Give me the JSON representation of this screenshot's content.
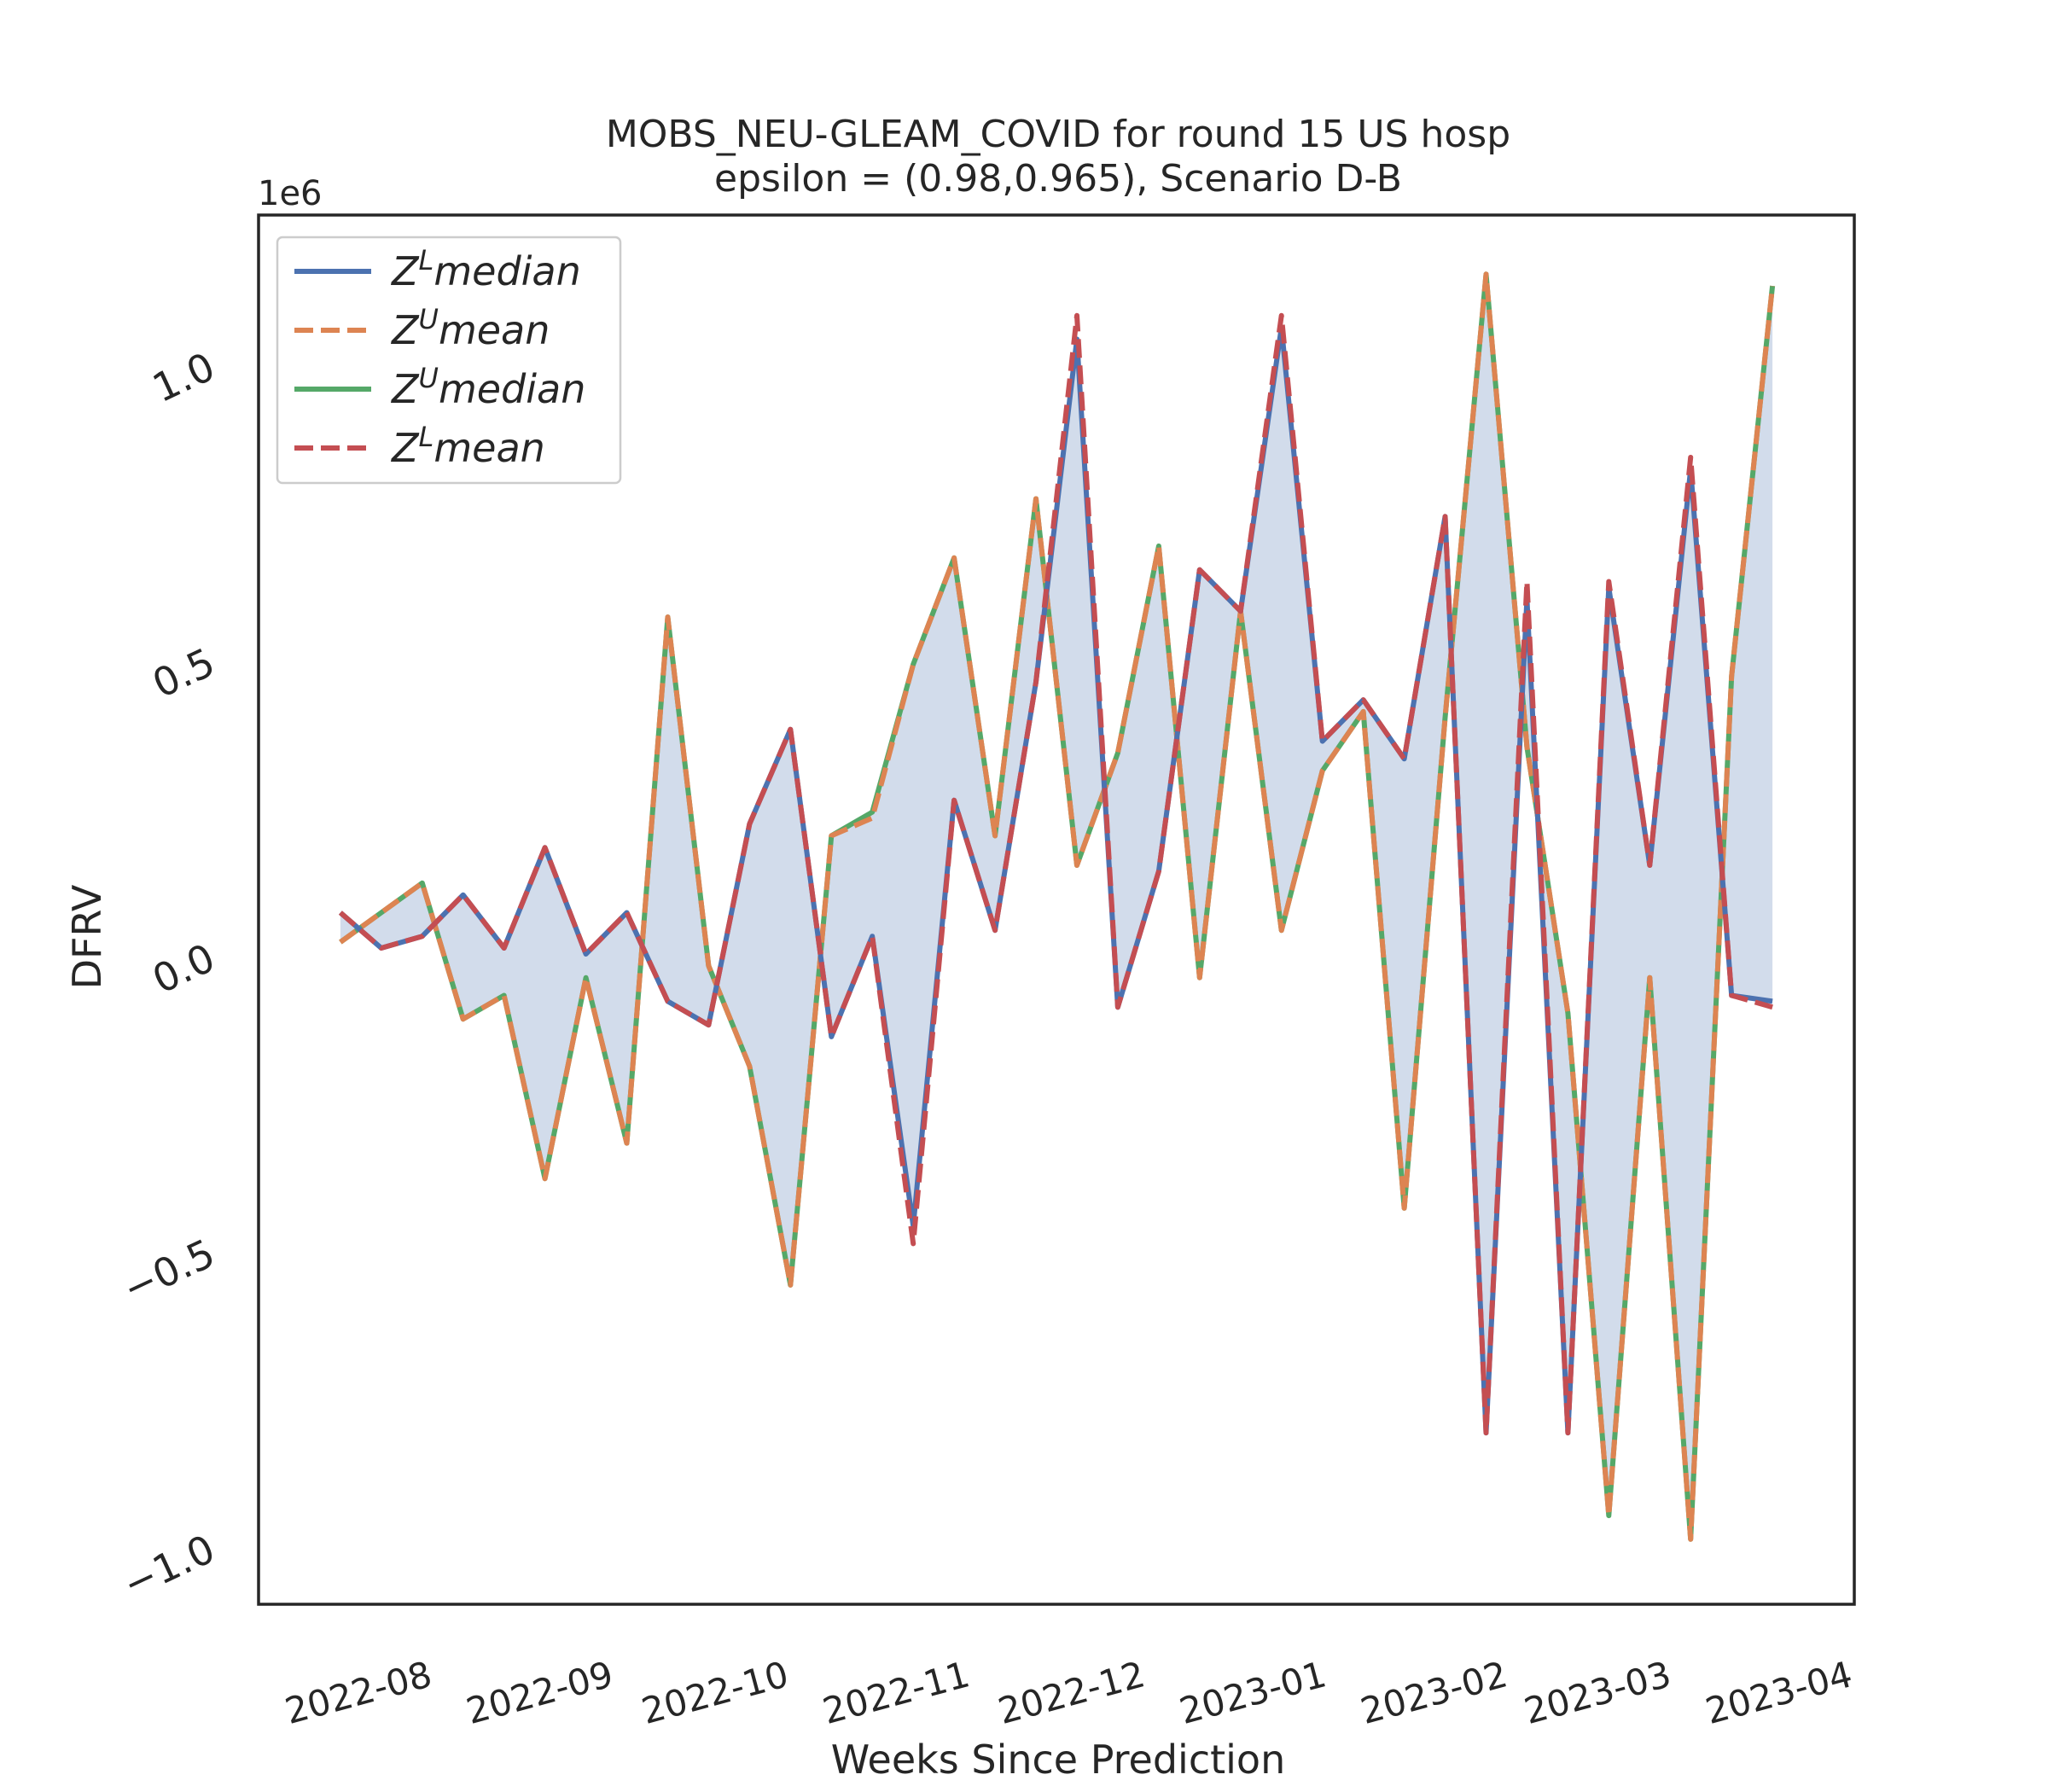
{
  "chart_data": {
    "type": "line",
    "title": "MOBS_NEU-GLEAM_COVID for round 15 US  hosp",
    "subtitle": "epsilon = (0.98,0.965), Scenario D-B",
    "xlabel": "Weeks Since Prediction",
    "ylabel": "DFRV",
    "y_offset_label": "1e6",
    "xlim": [
      "2022-07-09",
      "2023-04-08"
    ],
    "ylim": [
      -1.1,
      1.25
    ],
    "y_ticks": [
      -1.0,
      -0.5,
      0.0,
      0.5,
      1.0
    ],
    "y_tick_labels": [
      "−1.0",
      "−0.5",
      "0.0",
      "0.5",
      "1.0"
    ],
    "x_ticks": [
      "2022-08-01",
      "2022-09-01",
      "2022-10-01",
      "2022-11-01",
      "2022-12-01",
      "2023-01-01",
      "2023-02-01",
      "2023-03-01",
      "2023-04-01"
    ],
    "x_tick_labels": [
      "2022-08",
      "2022-09",
      "2022-10",
      "2022-11",
      "2022-12",
      "2023-01",
      "2023-02",
      "2023-03",
      "2023-04"
    ],
    "x": [
      "2022-07-23",
      "2022-07-30",
      "2022-08-06",
      "2022-08-13",
      "2022-08-20",
      "2022-08-27",
      "2022-09-03",
      "2022-09-10",
      "2022-09-17",
      "2022-09-24",
      "2022-10-01",
      "2022-10-08",
      "2022-10-15",
      "2022-10-22",
      "2022-10-29",
      "2022-11-05",
      "2022-11-12",
      "2022-11-19",
      "2022-11-26",
      "2022-12-03",
      "2022-12-10",
      "2022-12-17",
      "2022-12-24",
      "2022-12-31",
      "2023-01-07",
      "2023-01-14",
      "2023-01-21",
      "2023-01-28",
      "2023-02-04",
      "2023-02-11",
      "2023-02-18",
      "2023-02-25",
      "2023-03-04",
      "2023-03-11",
      "2023-03-18",
      "2023-03-25"
    ],
    "series": [
      {
        "name": "Z^L median",
        "color": "#4c72b0",
        "style": "solid",
        "values": [
          0.07,
          0.01,
          0.03,
          0.1,
          0.01,
          0.18,
          0.0,
          0.07,
          -0.08,
          -0.12,
          0.22,
          0.38,
          -0.14,
          0.03,
          -0.46,
          0.26,
          0.04,
          0.46,
          1.04,
          -0.09,
          0.14,
          0.65,
          0.58,
          1.06,
          0.36,
          0.43,
          0.33,
          0.74,
          -0.81,
          0.6,
          -0.81,
          0.62,
          0.15,
          0.82,
          -0.07,
          -0.08
        ]
      },
      {
        "name": "Z^U mean",
        "color": "#dd8452",
        "style": "dashed",
        "values": [
          0.02,
          0.07,
          0.12,
          -0.11,
          -0.07,
          -0.38,
          -0.04,
          -0.32,
          0.57,
          -0.02,
          -0.19,
          -0.56,
          0.2,
          0.23,
          0.49,
          0.67,
          0.2,
          0.77,
          0.15,
          0.34,
          0.69,
          -0.04,
          0.58,
          0.04,
          0.31,
          0.41,
          -0.43,
          0.4,
          1.15,
          0.35,
          -0.1,
          -0.95,
          -0.04,
          -0.99,
          0.47,
          1.13
        ]
      },
      {
        "name": "Z^U median",
        "color": "#55a868",
        "style": "solid",
        "values": [
          0.02,
          0.07,
          0.12,
          -0.11,
          -0.07,
          -0.38,
          -0.04,
          -0.32,
          0.57,
          -0.02,
          -0.19,
          -0.56,
          0.2,
          0.24,
          0.49,
          0.67,
          0.2,
          0.77,
          0.15,
          0.34,
          0.69,
          -0.04,
          0.58,
          0.04,
          0.31,
          0.41,
          -0.43,
          0.4,
          1.15,
          0.35,
          -0.1,
          -0.95,
          -0.04,
          -0.99,
          0.47,
          1.13
        ]
      },
      {
        "name": "Z^L mean",
        "color": "#c44e52",
        "style": "dashed",
        "values": [
          0.07,
          0.01,
          0.03,
          0.1,
          0.01,
          0.18,
          0.0,
          0.07,
          -0.08,
          -0.12,
          0.22,
          0.38,
          -0.14,
          0.03,
          -0.49,
          0.26,
          0.04,
          0.46,
          1.08,
          -0.09,
          0.14,
          0.65,
          0.58,
          1.08,
          0.36,
          0.43,
          0.33,
          0.74,
          -0.81,
          0.63,
          -0.81,
          0.63,
          0.15,
          0.84,
          -0.07,
          -0.09
        ]
      }
    ],
    "fill_between": [
      "Z^L median",
      "Z^U median"
    ],
    "fill_color": "#4c72b0",
    "legend": {
      "placement": "top-left",
      "entries": [
        {
          "base": "Z",
          "sup": "L",
          "rest": "median",
          "color": "#4c72b0",
          "style": "solid"
        },
        {
          "base": "Z",
          "sup": "U",
          "rest": "mean",
          "color": "#dd8452",
          "style": "dashed"
        },
        {
          "base": "Z",
          "sup": "U",
          "rest": "median",
          "color": "#55a868",
          "style": "solid"
        },
        {
          "base": "Z",
          "sup": "L",
          "rest": "mean",
          "color": "#c44e52",
          "style": "dashed"
        }
      ]
    },
    "grid": false
  }
}
